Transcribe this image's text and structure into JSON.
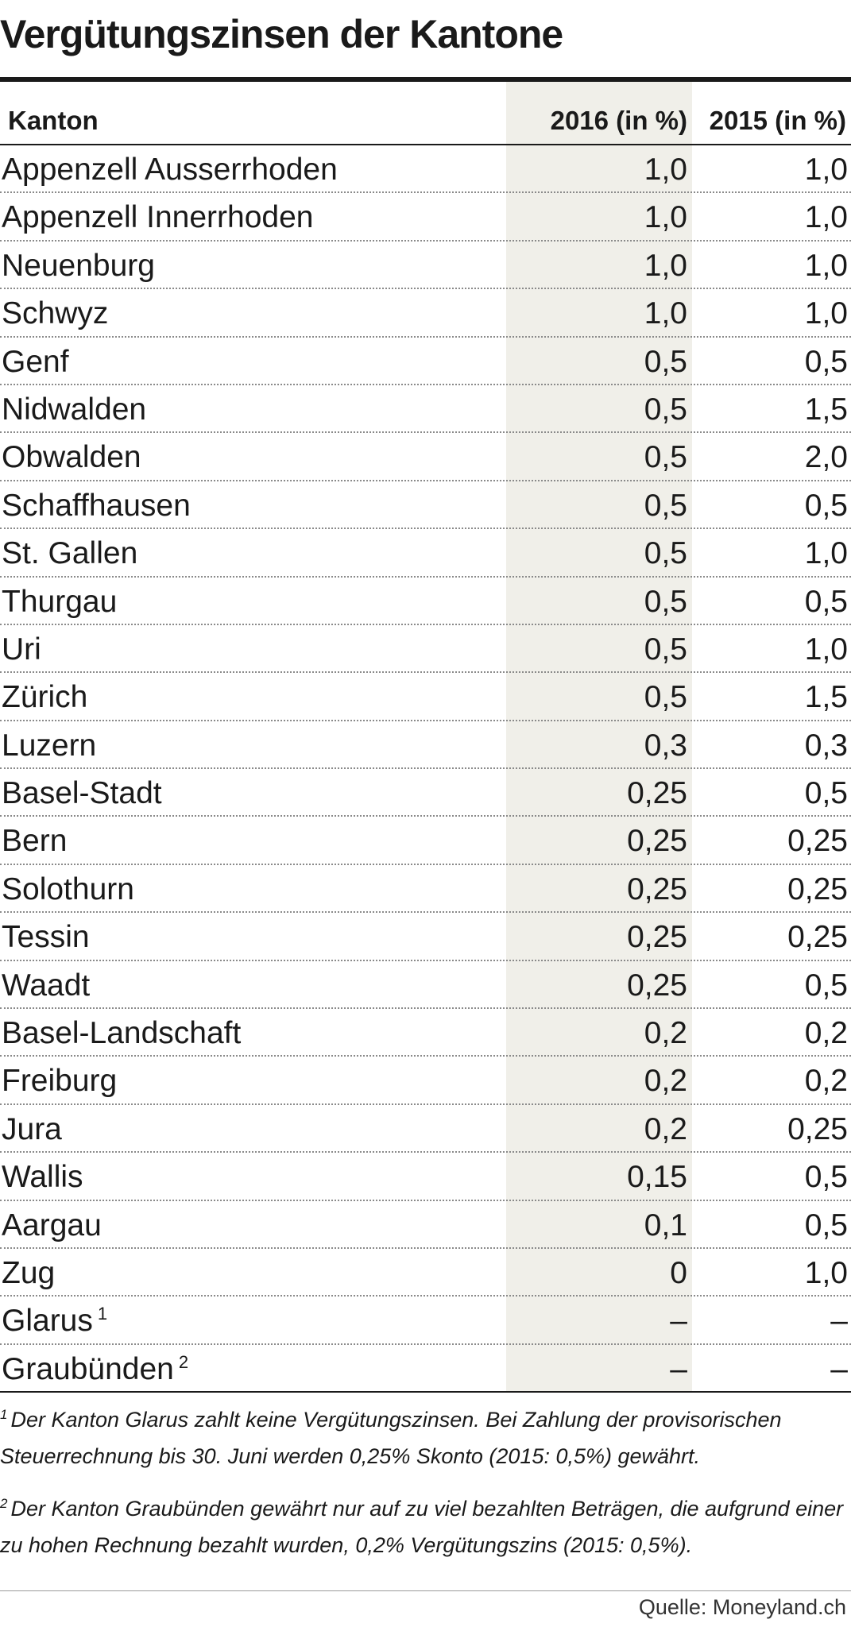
{
  "title": "Vergütungszinsen der Kantone",
  "table": {
    "headers": {
      "kanton": "Kanton",
      "col_2016": "2016 (in %)",
      "col_2015": "2015 (in %)"
    },
    "rows": [
      {
        "name": "Appenzell Ausserrhoden",
        "note": "",
        "v2016": "1,0",
        "v2015": "1,0"
      },
      {
        "name": "Appenzell Innerrhoden",
        "note": "",
        "v2016": "1,0",
        "v2015": "1,0"
      },
      {
        "name": "Neuenburg",
        "note": "",
        "v2016": "1,0",
        "v2015": "1,0"
      },
      {
        "name": "Schwyz",
        "note": "",
        "v2016": "1,0",
        "v2015": "1,0"
      },
      {
        "name": "Genf",
        "note": "",
        "v2016": "0,5",
        "v2015": "0,5"
      },
      {
        "name": "Nidwalden",
        "note": "",
        "v2016": "0,5",
        "v2015": "1,5"
      },
      {
        "name": "Obwalden",
        "note": "",
        "v2016": "0,5",
        "v2015": "2,0"
      },
      {
        "name": "Schaffhausen",
        "note": "",
        "v2016": "0,5",
        "v2015": "0,5"
      },
      {
        "name": "St. Gallen",
        "note": "",
        "v2016": "0,5",
        "v2015": "1,0"
      },
      {
        "name": "Thurgau",
        "note": "",
        "v2016": "0,5",
        "v2015": "0,5"
      },
      {
        "name": "Uri",
        "note": "",
        "v2016": "0,5",
        "v2015": "1,0"
      },
      {
        "name": "Zürich",
        "note": "",
        "v2016": "0,5",
        "v2015": "1,5"
      },
      {
        "name": "Luzern",
        "note": "",
        "v2016": "0,3",
        "v2015": "0,3"
      },
      {
        "name": "Basel-Stadt",
        "note": "",
        "v2016": "0,25",
        "v2015": "0,5"
      },
      {
        "name": "Bern",
        "note": "",
        "v2016": "0,25",
        "v2015": "0,25"
      },
      {
        "name": "Solothurn",
        "note": "",
        "v2016": "0,25",
        "v2015": "0,25"
      },
      {
        "name": "Tessin",
        "note": "",
        "v2016": "0,25",
        "v2015": "0,25"
      },
      {
        "name": "Waadt",
        "note": "",
        "v2016": "0,25",
        "v2015": "0,5"
      },
      {
        "name": "Basel-Landschaft",
        "note": "",
        "v2016": "0,2",
        "v2015": "0,2"
      },
      {
        "name": "Freiburg",
        "note": "",
        "v2016": "0,2",
        "v2015": "0,2"
      },
      {
        "name": "Jura",
        "note": "",
        "v2016": "0,2",
        "v2015": "0,25"
      },
      {
        "name": "Wallis",
        "note": "",
        "v2016": "0,15",
        "v2015": "0,5"
      },
      {
        "name": "Aargau",
        "note": "",
        "v2016": "0,1",
        "v2015": "0,5"
      },
      {
        "name": "Zug",
        "note": "",
        "v2016": "0",
        "v2015": "1,0"
      },
      {
        "name": "Glarus",
        "note": "1",
        "v2016": "–",
        "v2015": "–"
      },
      {
        "name": "Graubünden",
        "note": "2",
        "v2016": "–",
        "v2015": "–"
      }
    ]
  },
  "footnotes": [
    {
      "marker": "1",
      "text": "Der Kanton Glarus zahlt keine Vergütungszinsen. Bei  Zahlung der provisorischen Steuerrechnung bis 30. Juni werden 0,25% Skonto (2015: 0,5%) gewährt."
    },
    {
      "marker": "2",
      "text": "Der Kanton Graubünden gewährt nur auf zu viel bezahlten Beträgen, die aufgrund einer zu hohen Rechnung bezahlt wurden, 0,2% Vergütungszins (2015: 0,5%)."
    }
  ],
  "source": "Quelle: Moneyland.ch",
  "colors": {
    "text": "#1a1a1a",
    "highlight_column": "#f0efe9",
    "dotted_rule": "#8a8a8a"
  }
}
